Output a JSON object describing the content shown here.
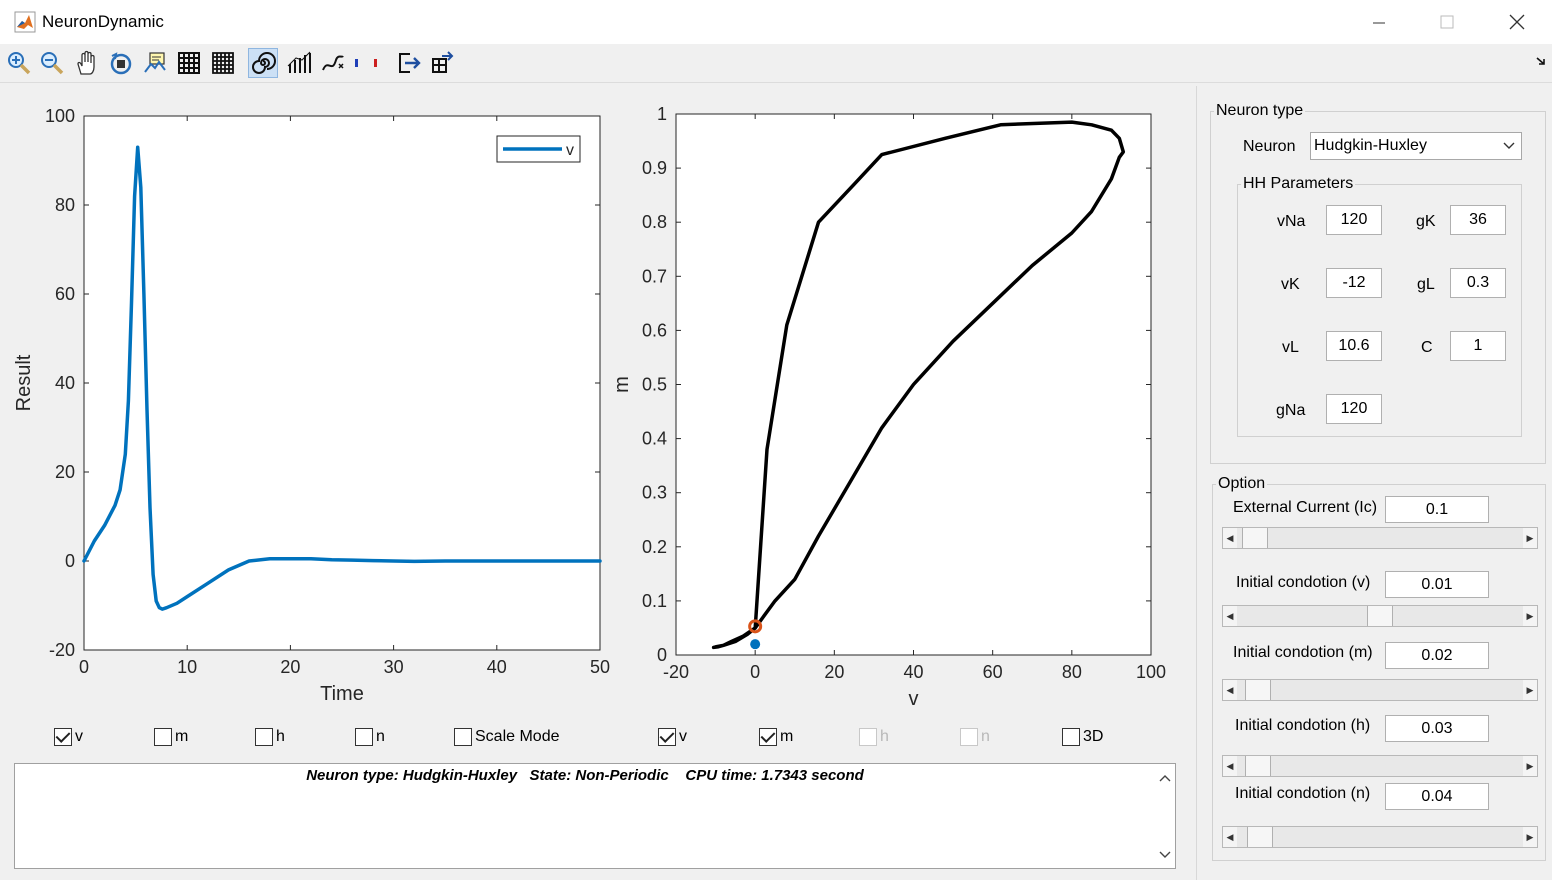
{
  "window": {
    "title": "NeuronDynamic"
  },
  "toolbar": {
    "icons": [
      "zoom-in-icon",
      "zoom-out-icon",
      "pan-icon",
      "rotate-3d-icon",
      "data-cursor-icon",
      "grid-icon",
      "minor-grid-icon",
      "spiral-icon",
      "bar-plot-icon",
      "trajectory-icon",
      "color-bar-icon",
      "export-icon",
      "layout-icon"
    ],
    "active": "spiral-icon"
  },
  "plot_checkboxes": [
    {
      "label": "v",
      "checked": true,
      "enabled": true
    },
    {
      "label": "m",
      "checked": false,
      "enabled": true
    },
    {
      "label": "h",
      "checked": false,
      "enabled": true
    },
    {
      "label": "n",
      "checked": false,
      "enabled": true
    },
    {
      "label": "Scale Mode",
      "checked": false,
      "enabled": true
    }
  ],
  "phase_checkboxes": [
    {
      "label": "v",
      "checked": true,
      "enabled": true
    },
    {
      "label": "m",
      "checked": true,
      "enabled": true
    },
    {
      "label": "h",
      "checked": false,
      "enabled": false
    },
    {
      "label": "n",
      "checked": false,
      "enabled": false
    },
    {
      "label": "3D",
      "checked": false,
      "enabled": true
    }
  ],
  "console": {
    "text": "Neuron type: Hudgkin-Huxley   State: Non-Periodic    CPU time: 1.7343 second"
  },
  "panel": {
    "neuron_type_title": "Neuron type",
    "neuron_label": "Neuron",
    "neuron_value": "Hudgkin-Huxley",
    "hh_title": "HH Parameters",
    "params": {
      "vNa": {
        "label": "vNa",
        "value": "120"
      },
      "gK": {
        "label": "gK",
        "value": "36"
      },
      "vK": {
        "label": "vK",
        "value": "-12"
      },
      "gL": {
        "label": "gL",
        "value": "0.3"
      },
      "vL": {
        "label": "vL",
        "value": "10.6"
      },
      "C": {
        "label": "C",
        "value": "1"
      },
      "gNa": {
        "label": "gNa",
        "value": "120"
      }
    },
    "option_title": "Option",
    "options": [
      {
        "label": "External Current (Ic)",
        "value": "0.1",
        "slider": 0.02
      },
      {
        "label": "Initial condotion (v)",
        "value": "0.01",
        "slider": 0.5
      },
      {
        "label": "Initial condotion (m)",
        "value": "0.02",
        "slider": 0.03
      },
      {
        "label": "Initial condotion (h)",
        "value": "0.03",
        "slider": 0.03
      },
      {
        "label": "Initial condotion (n)",
        "value": "0.04",
        "slider": 0.04
      }
    ]
  },
  "chart_data": [
    {
      "type": "line",
      "xlabel": "Time",
      "ylabel": "Result",
      "xlim": [
        0,
        50
      ],
      "ylim": [
        -20,
        100
      ],
      "xticks": [
        "0",
        "10",
        "20",
        "30",
        "40",
        "50"
      ],
      "yticks": [
        "-20",
        "0",
        "20",
        "40",
        "60",
        "80",
        "100"
      ],
      "legend": {
        "position": "top-right",
        "entries": [
          "v"
        ]
      },
      "series": [
        {
          "name": "v",
          "color": "#0072bd",
          "x": [
            0,
            1,
            2,
            3,
            3.5,
            4,
            4.3,
            4.6,
            4.9,
            5.2,
            5.5,
            5.8,
            6.1,
            6.4,
            6.7,
            7,
            7.3,
            7.6,
            8,
            9,
            10,
            12,
            14,
            16,
            18,
            20,
            22,
            24,
            26,
            28,
            30,
            32,
            35,
            40,
            45,
            50
          ],
          "y": [
            0,
            4.5,
            8,
            12.5,
            16,
            24,
            36,
            58,
            82,
            93,
            84,
            60,
            34,
            12,
            -3,
            -9,
            -10.5,
            -10.8,
            -10.5,
            -9.5,
            -8,
            -5,
            -2,
            0,
            0.5,
            0.5,
            0.5,
            0.3,
            0.2,
            0.1,
            0,
            -0.1,
            0,
            0,
            0,
            0
          ]
        }
      ]
    },
    {
      "type": "line",
      "xlabel": "v",
      "ylabel": "m",
      "xlim": [
        -20,
        100
      ],
      "ylim": [
        0,
        1
      ],
      "xticks": [
        "-20",
        "0",
        "20",
        "40",
        "60",
        "80",
        "100"
      ],
      "yticks": [
        "0",
        "0.1",
        "0.2",
        "0.3",
        "0.4",
        "0.5",
        "0.6",
        "0.7",
        "0.8",
        "0.9",
        "1"
      ],
      "series": [
        {
          "name": "",
          "color": "#000000",
          "x": [
            0,
            -3,
            -6,
            -8,
            -9.5,
            -10.5,
            -10,
            -8,
            -5,
            -2,
            0,
            2,
            5,
            10,
            16,
            24,
            32,
            40,
            50,
            60,
            70,
            80,
            85,
            90,
            92,
            93,
            92,
            90,
            85,
            80,
            72,
            62,
            48,
            32,
            25,
            16,
            8,
            3,
            0
          ],
          "y": [
            0.05,
            0.035,
            0.025,
            0.018,
            0.015,
            0.014,
            0.015,
            0.018,
            0.025,
            0.038,
            0.05,
            0.07,
            0.1,
            0.14,
            0.22,
            0.32,
            0.42,
            0.5,
            0.58,
            0.65,
            0.72,
            0.78,
            0.82,
            0.88,
            0.92,
            0.93,
            0.955,
            0.97,
            0.98,
            0.985,
            0.983,
            0.98,
            0.955,
            0.925,
            0.87,
            0.8,
            0.61,
            0.38,
            0.05
          ]
        }
      ],
      "markers": [
        {
          "label": "start",
          "x": 0,
          "y": 0.02,
          "color": "#0072bd",
          "shape": "filled-circle"
        },
        {
          "label": "end",
          "x": 0,
          "y": 0.053,
          "color": "#d95319",
          "shape": "open-circle"
        }
      ]
    }
  ]
}
